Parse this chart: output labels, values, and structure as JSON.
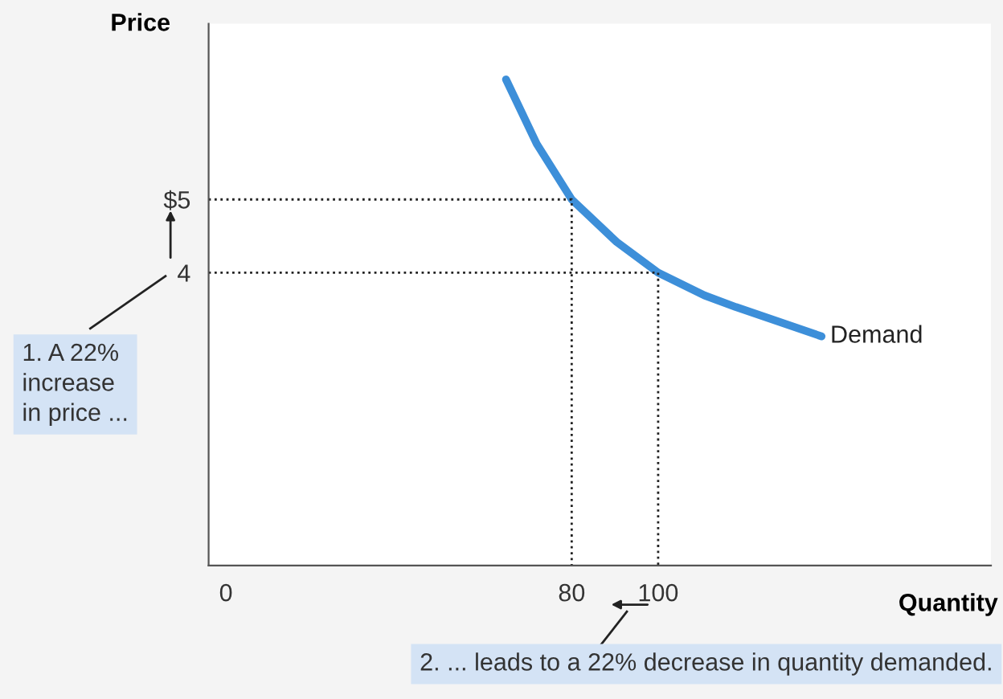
{
  "chart_data": {
    "type": "line",
    "xlabel": "Quantity",
    "ylabel": "Price",
    "xlim": [
      -4,
      177
    ],
    "ylim": [
      0,
      7.4
    ],
    "xticks": [
      0,
      80,
      100
    ],
    "yticks": [
      4,
      {
        "value": 5,
        "label": "$5"
      }
    ],
    "grid": false,
    "series": [
      {
        "name": "Demand",
        "color": "#3d8fd9",
        "x": [
          64.8,
          71.9,
          80,
          90.4,
          100,
          110.7,
          118,
          137.8
        ],
        "values": [
          6.64,
          5.76,
          5,
          4.42,
          4,
          3.69,
          3.53,
          3.13
        ]
      },
      {
        "color": "#222222",
        "line_style": "dotted",
        "x": [
          -4,
          80,
          80
        ],
        "values": [
          5,
          5,
          0
        ]
      },
      {
        "color": "#222222",
        "line_style": "dotted",
        "x": [
          -4,
          100,
          100
        ],
        "values": [
          4,
          4,
          0
        ]
      }
    ],
    "annotations": [
      "1. A 22%\nincrease\nin price ...",
      "2. ... leads to a 22% decrease in quantity demanded."
    ]
  }
}
